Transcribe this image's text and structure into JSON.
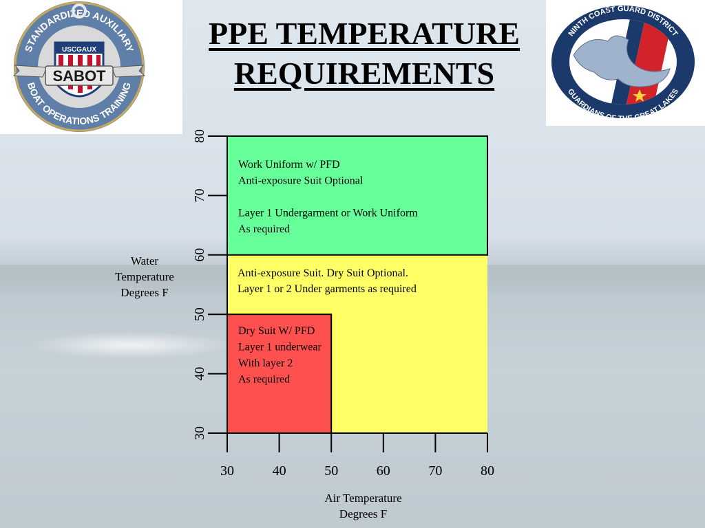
{
  "title": {
    "line1": "PPE TEMPERATURE",
    "line2": "REQUIREMENTS"
  },
  "logos": {
    "left": {
      "top_text": "STANDARDIZED AUXILIARY",
      "bottom_text": "BOAT OPERATIONS TRAINING",
      "shield_text": "USCGAUX",
      "banner_text": "SABOT"
    },
    "right": {
      "top_text": "NINTH COAST GUARD DISTRICT",
      "bottom_text": "GUARDIANS OF THE GREAT LAKES"
    }
  },
  "chart_data": {
    "type": "region",
    "xlabel": "Air Temperature Degrees F",
    "ylabel": "Water Temperature Degrees F",
    "xlabel_lines": [
      "Air Temperature",
      "Degrees F"
    ],
    "ylabel_lines": [
      "Water",
      "Temperature",
      "Degrees F"
    ],
    "x_ticks": [
      30,
      40,
      50,
      60,
      70,
      80
    ],
    "y_ticks": [
      30,
      40,
      50,
      60,
      70,
      80
    ],
    "xlim": [
      30,
      80
    ],
    "ylim": [
      30,
      80
    ],
    "regions": [
      {
        "id": "green",
        "color": "#66ff99",
        "x": [
          30,
          80
        ],
        "y": [
          60,
          80
        ],
        "lines": [
          "Work Uniform w/ PFD",
          "Anti-exposure Suit Optional",
          "",
          "Layer 1 Undergarment or Work Uniform",
          "As required"
        ]
      },
      {
        "id": "yellow",
        "color": "#ffff66",
        "x": [
          30,
          80
        ],
        "y": [
          30,
          60
        ],
        "lines": [
          "Anti-exposure Suit.  Dry Suit Optional.",
          "Layer 1 or 2 Under garments as required"
        ]
      },
      {
        "id": "red",
        "color": "#ff5050",
        "x": [
          30,
          50
        ],
        "y": [
          30,
          50
        ],
        "lines": [
          "Dry Suit W/ PFD",
          "Layer 1 underwear",
          "With layer 2",
          "As required"
        ]
      }
    ]
  }
}
